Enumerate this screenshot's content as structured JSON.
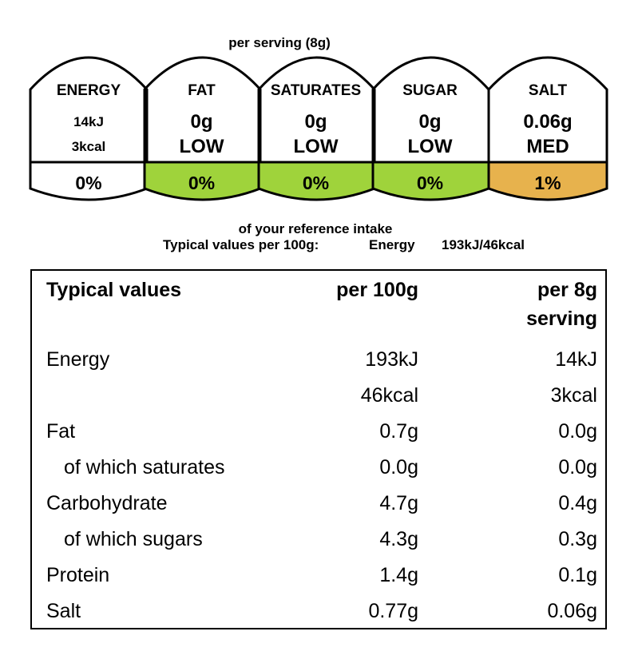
{
  "header": {
    "per_serving": "per serving  (8g)",
    "reference_intake": "of your reference intake",
    "typical_line": {
      "label": "Typical values per 100g:",
      "energy_label": "Energy",
      "energy_value": "193kJ/46kcal"
    }
  },
  "gda": {
    "cells": [
      {
        "name": "ENERGY",
        "value1": "14kJ",
        "value2": "3kcal",
        "percent": "0%",
        "color": "#ffffff"
      },
      {
        "name": "FAT",
        "value1": "0g",
        "value2": "LOW",
        "percent": "0%",
        "color": "#9fd33b"
      },
      {
        "name": "SATURATES",
        "value1": "0g",
        "value2": "LOW",
        "percent": "0%",
        "color": "#9fd33b"
      },
      {
        "name": "SUGAR",
        "value1": "0g",
        "value2": "LOW",
        "percent": "0%",
        "color": "#9fd33b"
      },
      {
        "name": "SALT",
        "value1": "0.06g",
        "value2": "MED",
        "percent": "1%",
        "color": "#e7b24d"
      }
    ]
  },
  "table": {
    "headers": {
      "label": "Typical values",
      "per100": "per 100g",
      "serving_line1": "per 8g",
      "serving_line2": "serving"
    },
    "rows": [
      {
        "label": "Energy",
        "per100": "193kJ",
        "serving": "14kJ"
      },
      {
        "label": "",
        "per100": "46kcal",
        "serving": "3kcal"
      },
      {
        "label": "Fat",
        "per100": "0.7g",
        "serving": "0.0g"
      },
      {
        "label": "of which saturates",
        "per100": "0.0g",
        "serving": "0.0g"
      },
      {
        "label": "Carbohydrate",
        "per100": "4.7g",
        "serving": "0.4g"
      },
      {
        "label": "of which sugars",
        "per100": "4.3g",
        "serving": "0.3g"
      },
      {
        "label": "Protein",
        "per100": "1.4g",
        "serving": "0.1g"
      },
      {
        "label": "Salt",
        "per100": "0.77g",
        "serving": "0.06g"
      }
    ]
  }
}
